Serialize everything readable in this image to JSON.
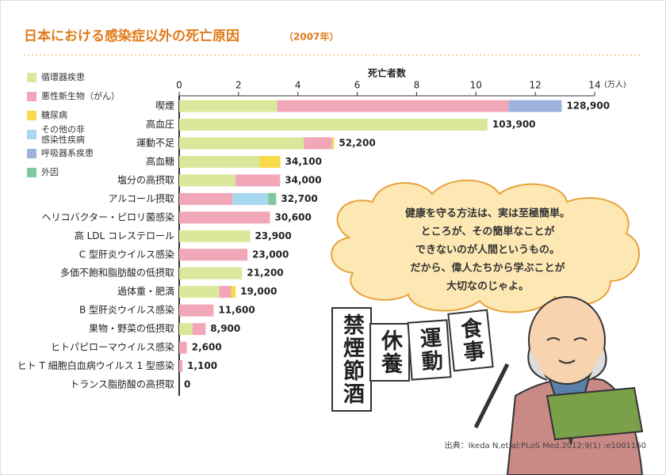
{
  "chart_data": {
    "type": "stacked-barh",
    "title": "日本における感染症以外の死亡原因",
    "subtitle": "（2007年）",
    "x_label": "死亡者数",
    "x_unit": "(万人)",
    "categories": [
      "喫煙",
      "高血圧",
      "運動不足",
      "高血糖",
      "塩分の高摂取",
      "アルコール摂取",
      "ヘリコバクター・ピロリ菌感染",
      "高 LDL コレステロール",
      "C 型肝炎ウイルス感染",
      "多価不飽和脂肪酸の低摂取",
      "過体重・肥満",
      "B 型肝炎ウイルス感染",
      "果物・野菜の低摂取",
      "ヒトパピローマウイルス感染",
      "ヒト T 細胞白血病ウイルス 1 型感染",
      "トランス脂肪酸の高摂取"
    ],
    "series": [
      {
        "name": "循環器疾患",
        "color": "#d9e89a",
        "values": [
          3.3,
          10.39,
          4.2,
          2.7,
          1.9,
          null,
          null,
          2.39,
          null,
          2.12,
          1.35,
          null,
          0.45,
          null,
          null,
          null
        ]
      },
      {
        "name": "悪性新生物（がん）",
        "color": "#f2a7b8",
        "values": [
          7.8,
          null,
          0.95,
          null,
          1.5,
          1.8,
          3.06,
          null,
          2.3,
          null,
          0.4,
          1.16,
          0.44,
          0.26,
          0.11,
          null
        ]
      },
      {
        "name": "糖尿病",
        "color": "#f9da4a",
        "values": [
          null,
          null,
          0.07,
          0.71,
          null,
          null,
          null,
          null,
          null,
          null,
          0.15,
          null,
          null,
          null,
          null,
          null
        ]
      },
      {
        "name": "その他の非感染性疾病",
        "color": "#a8d8f0",
        "values": [
          null,
          null,
          null,
          null,
          null,
          1.2,
          null,
          null,
          null,
          null,
          null,
          null,
          null,
          null,
          null,
          null
        ]
      },
      {
        "name": "呼吸器系疾患",
        "color": "#9db3de",
        "values": [
          1.79,
          null,
          null,
          null,
          null,
          null,
          null,
          null,
          null,
          null,
          null,
          null,
          null,
          null,
          null,
          null
        ]
      },
      {
        "name": "外因",
        "color": "#7fc8a0",
        "values": [
          null,
          null,
          null,
          null,
          null,
          0.27,
          null,
          null,
          null,
          null,
          null,
          null,
          null,
          null,
          null,
          null
        ]
      }
    ],
    "totals": {
      "values": [
        12.89,
        10.39,
        5.22,
        3.41,
        3.4,
        3.27,
        3.06,
        2.39,
        2.3,
        2.12,
        1.9,
        1.16,
        0.89,
        0.26,
        0.11,
        0
      ],
      "value_labels": [
        "128,900",
        "103,900",
        "52,200",
        "34,100",
        "34,000",
        "32,700",
        "30,600",
        "23,900",
        "23,000",
        "21,200",
        "19,000",
        "11,600",
        "8,900",
        "2,600",
        "1,100",
        "0"
      ]
    },
    "xlim": [
      0,
      14
    ],
    "xticks": [
      0,
      2,
      4,
      6,
      8,
      10,
      12,
      14
    ],
    "grid": false
  },
  "cloud_text": [
    "健康を守る方法は、実は至極簡単。",
    "ところが、その簡単なことが",
    "できないのが人間というもの。",
    "だから、偉人たちから学ぶことが",
    "大切なのじゃよ。"
  ],
  "signs": [
    "禁煙節酒",
    "休養",
    "運動",
    "食事"
  ],
  "source": "出典：Ikeda N,et al;PLoS Med.2012;9(1) :e1001160"
}
